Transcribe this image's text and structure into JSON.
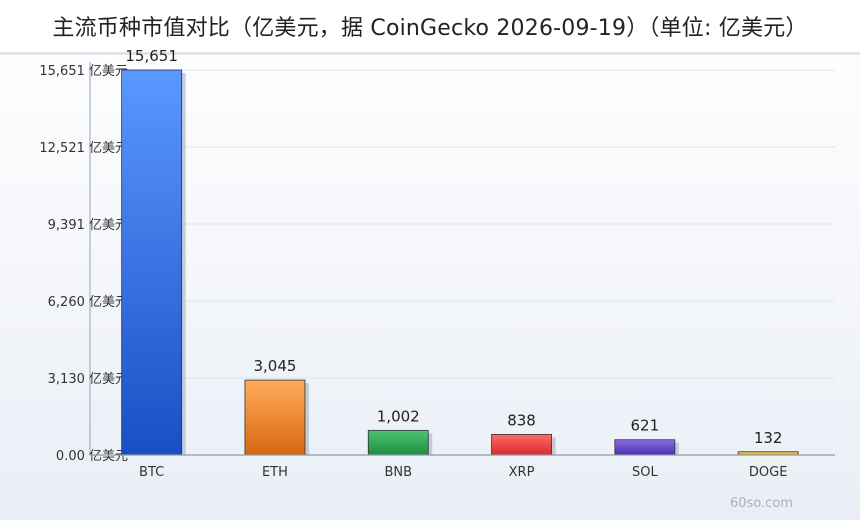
{
  "title": "主流币种市值对比（亿美元，据 CoinGecko 2026-09-19）（单位: 亿美元）",
  "watermark": "60so.com",
  "chart_data": {
    "type": "bar",
    "title": "主流币种市值对比（亿美元，据 CoinGecko 2026-09-19）（单位: 亿美元）",
    "xlabel": "",
    "ylabel": "",
    "unit": "亿美元",
    "categories": [
      "BTC",
      "ETH",
      "BNB",
      "XRP",
      "SOL",
      "DOGE"
    ],
    "values": [
      15651,
      3045,
      1002,
      838,
      621,
      132
    ],
    "value_labels": [
      "15,651",
      "3,045",
      "1,002",
      "838",
      "621",
      "132"
    ],
    "y_ticks": [
      0,
      3130,
      6260,
      9391,
      12521,
      15651
    ],
    "y_tick_labels": [
      "0.00 亿美元",
      "3,130 亿美元",
      "6,260 亿美元",
      "9,391 亿美元",
      "12,521 亿美元",
      "15,651 亿美元"
    ],
    "ylim": [
      0,
      15651
    ],
    "grid": true,
    "colors": {
      "BTC": [
        "#5b98ff",
        "#1a4fc4"
      ],
      "ETH": [
        "#ffad5c",
        "#d9660f"
      ],
      "BNB": [
        "#4cc472",
        "#1f8c3d"
      ],
      "XRP": [
        "#ff6a6a",
        "#d62b2b"
      ],
      "SOL": [
        "#8a6be8",
        "#4a2fb0"
      ],
      "DOGE": [
        "#f6cf5a",
        "#d6a320"
      ]
    }
  }
}
